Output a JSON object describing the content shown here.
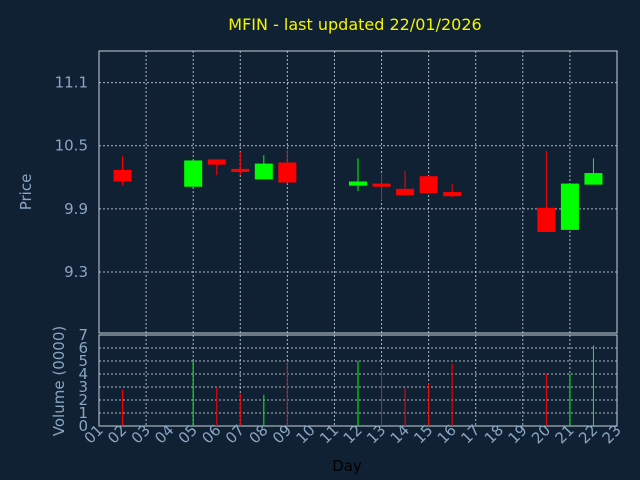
{
  "chart_data": [
    {
      "type": "candlestick",
      "title": "MFIN - last updated 22/01/2026",
      "ylabel": "Price",
      "ylim": [
        8.72,
        11.4
      ],
      "y_ticks": [
        "9.3",
        "9.9",
        "10.5",
        "11.1"
      ],
      "grid": true,
      "colors": {
        "up": "#00ff00",
        "down": "#ff0000",
        "background": "#0f2133",
        "grid": "#c8d2dc",
        "text": "#8aa6c1",
        "title": "#f5f500"
      },
      "candles": [
        {
          "day": 2,
          "open": 10.27,
          "high": 10.4,
          "low": 10.12,
          "close": 10.16
        },
        {
          "day": 5,
          "open": 10.11,
          "high": 10.36,
          "low": 10.11,
          "close": 10.36
        },
        {
          "day": 6,
          "open": 10.37,
          "high": 10.37,
          "low": 10.22,
          "close": 10.32
        },
        {
          "day": 7,
          "open": 10.28,
          "high": 10.44,
          "low": 10.22,
          "close": 10.25
        },
        {
          "day": 8,
          "open": 10.18,
          "high": 10.41,
          "low": 10.18,
          "close": 10.33
        },
        {
          "day": 9,
          "open": 10.34,
          "high": 10.46,
          "low": 10.14,
          "close": 10.15
        },
        {
          "day": 12,
          "open": 10.12,
          "high": 10.38,
          "low": 10.07,
          "close": 10.16
        },
        {
          "day": 13,
          "open": 10.14,
          "high": 10.23,
          "low": 9.98,
          "close": 10.11
        },
        {
          "day": 14,
          "open": 10.09,
          "high": 10.26,
          "low": 10.03,
          "close": 10.03
        },
        {
          "day": 15,
          "open": 10.21,
          "high": 10.21,
          "low": 10.05,
          "close": 10.05
        },
        {
          "day": 16,
          "open": 10.06,
          "high": 10.14,
          "low": 10.01,
          "close": 10.02
        },
        {
          "day": 20,
          "open": 9.91,
          "high": 10.45,
          "low": 9.68,
          "close": 9.68
        },
        {
          "day": 21,
          "open": 9.7,
          "high": 10.14,
          "low": 9.7,
          "close": 10.14
        },
        {
          "day": 22,
          "open": 10.13,
          "high": 10.38,
          "low": 10.13,
          "close": 10.24
        }
      ]
    },
    {
      "type": "bar",
      "xlabel": "Day",
      "ylabel": "Volume (0000)",
      "ylim": [
        0,
        7
      ],
      "y_ticks": [
        "0",
        "1",
        "2",
        "3",
        "4",
        "5",
        "6",
        "7"
      ],
      "x_ticks": [
        "01",
        "02",
        "03",
        "04",
        "05",
        "06",
        "07",
        "08",
        "09",
        "10",
        "11",
        "12",
        "13",
        "14",
        "15",
        "16",
        "17",
        "18",
        "19",
        "20",
        "21",
        "22",
        "23"
      ],
      "grid": true,
      "bars": [
        {
          "day": 2,
          "value": 2.8,
          "direction": "down"
        },
        {
          "day": 5,
          "value": 5.0,
          "direction": "up"
        },
        {
          "day": 6,
          "value": 3.0,
          "direction": "down"
        },
        {
          "day": 7,
          "value": 2.5,
          "direction": "down"
        },
        {
          "day": 8,
          "value": 2.4,
          "direction": "up"
        },
        {
          "day": 9,
          "value": 5.0,
          "direction": "down"
        },
        {
          "day": 12,
          "value": 5.0,
          "direction": "up"
        },
        {
          "day": 13,
          "value": 4.3,
          "direction": "down"
        },
        {
          "day": 14,
          "value": 2.9,
          "direction": "down"
        },
        {
          "day": 15,
          "value": 3.3,
          "direction": "down"
        },
        {
          "day": 16,
          "value": 4.8,
          "direction": "down"
        },
        {
          "day": 20,
          "value": 4.0,
          "direction": "down"
        },
        {
          "day": 21,
          "value": 4.0,
          "direction": "up"
        },
        {
          "day": 22,
          "value": 6.2,
          "direction": "up"
        }
      ]
    }
  ]
}
